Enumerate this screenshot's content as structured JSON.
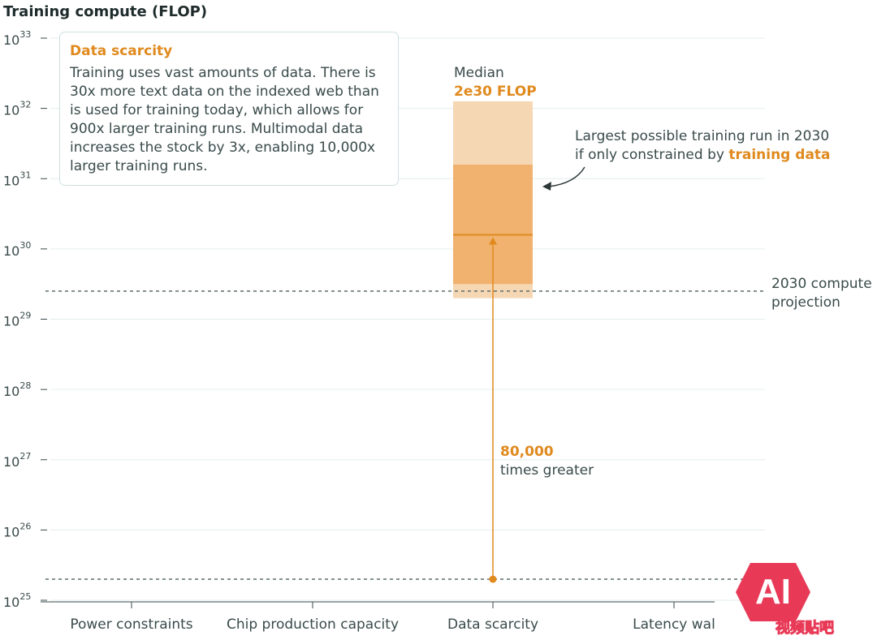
{
  "chart_data": {
    "type": "bar",
    "title": "Training compute (FLOP)",
    "y_scale": "log",
    "ylim_exponent": [
      25,
      33
    ],
    "y_ticks": [
      {
        "base": "10",
        "exp": "33",
        "value": 33
      },
      {
        "base": "10",
        "exp": "32",
        "value": 32
      },
      {
        "base": "10",
        "exp": "31",
        "value": 31
      },
      {
        "base": "10",
        "exp": "30",
        "value": 30
      },
      {
        "base": "10",
        "exp": "29",
        "value": 29
      },
      {
        "base": "10",
        "exp": "28",
        "value": 28
      },
      {
        "base": "10",
        "exp": "27",
        "value": 27
      },
      {
        "base": "10",
        "exp": "26",
        "value": 26
      },
      {
        "base": "10",
        "exp": "25",
        "value": 25
      }
    ],
    "categories": [
      "Power constraints",
      "Chip production capacity",
      "Data scarcity",
      "Latency wal"
    ],
    "grid": true,
    "bars": [
      {
        "category": "Data scarcity",
        "outer_range_exp": [
          29.3,
          32.1
        ],
        "inner_range_exp": [
          29.5,
          31.2
        ],
        "median_exp": 30.2
      }
    ],
    "reference_lines": [
      {
        "label": "2030 compute projection",
        "value_exp": 29.4
      },
      {
        "label": "",
        "value_exp": 25.3
      }
    ],
    "arrow": {
      "from_exp": 25.3,
      "to_exp": 30.2,
      "category": "Data scarcity"
    },
    "colors": {
      "accent": "#e08a1e",
      "outer_band": "#f6d7b3",
      "inner_band": "#f0b26e",
      "grid": "#e4eded",
      "dash": "#5c6b6b"
    }
  },
  "callout": {
    "title": "Data scarcity",
    "body": "Training uses vast amounts of data. There is 30x more text data on the indexed web than is used for training today, which allows for 900x larger training runs. Multimodal data increases the stock by 3x, enabling 10,000x larger training runs."
  },
  "annotations": {
    "median_label": "Median",
    "median_value": "2e30 FLOP",
    "largest_line1": "Largest possible training run in 2030",
    "largest_line2_prefix": "if only constrained by ",
    "largest_line2_accent": "training data",
    "projection_line1": "2030 compute",
    "projection_line2": "projection",
    "times_value": "80,000",
    "times_label": "times greater"
  },
  "watermark": {
    "text": "视频贴吧",
    "logo": "AI"
  }
}
